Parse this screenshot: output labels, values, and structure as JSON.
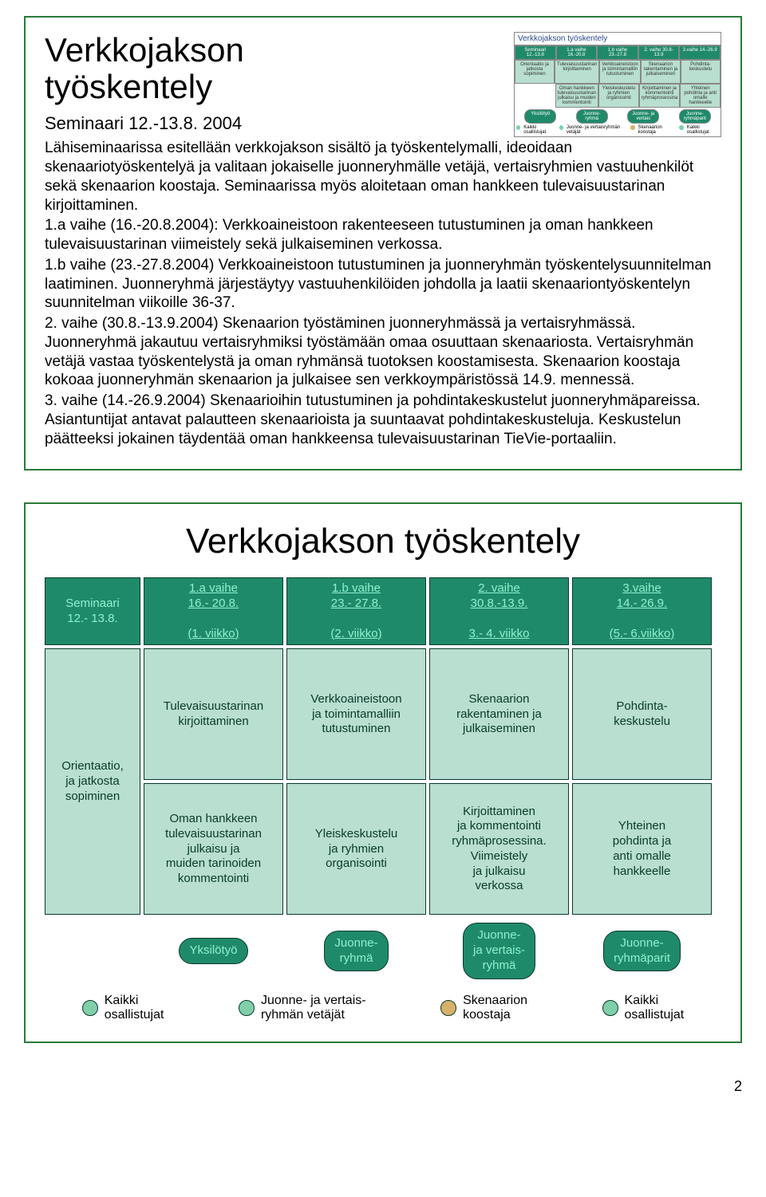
{
  "slide1": {
    "title": "Verkkojakson\ntyöskentely",
    "subtitle": "Seminaari 12.-13.8. 2004",
    "thumb_title": "Verkkojakson työskentely",
    "paragraphs": [
      "Lähiseminaarissa esitellään verkkojakson sisältö ja työskentelymalli, ideoidaan skenaariotyöskentelyä ja valitaan jokaiselle juonneryhmälle vetäjä, vertaisryhmien vastuuhenkilöt sekä skenaarion koostaja. Seminaarissa myös aloitetaan oman hankkeen tulevaisuustarinan kirjoittaminen.",
      "1.a vaihe (16.-20.8.2004): Verkkoaineistoon rakenteeseen tutustuminen ja oman hankkeen tulevaisuustarinan viimeistely sekä julkaiseminen verkossa.",
      "1.b vaihe (23.-27.8.2004) Verkkoaineistoon tutustuminen ja juonneryhmän työskentelysuunnitelman laatiminen. Juonneryhmä järjestäytyy vastuuhenkilöiden johdolla ja laatii skenaariontyöskentelyn suunnitelman viikoille 36-37.",
      "2. vaihe (30.8.-13.9.2004) Skenaarion työstäminen juonneryhmässä ja vertaisryhmässä. Juonneryhmä jakautuu vertaisryhmiksi työstämään omaa osuuttaan skenaariosta. Vertaisryhmän vetäjä vastaa työskentelystä ja oman ryhmänsä tuotoksen koostamisesta. Skenaarion koostaja kokoaa juonneryhmän skenaarion ja julkaisee sen verkkoympäristössä 14.9. mennessä.",
      "3. vaihe (14.-26.9.2004) Skenaarioihin tutustuminen ja pohdintakeskustelut juonneryhmäpareissa. Asiantuntijat antavat palautteen skenaarioista ja suuntaavat pohdintakeskusteluja. Keskustelun päätteeksi jokainen täydentää oman hankkeensa tulevaisuustarinan TieVie-portaaliin."
    ]
  },
  "slide2": {
    "title": "Verkkojakson työskentely",
    "header": [
      {
        "l1": "Seminaari",
        "l2": "12.- 13.8.",
        "style": "dark"
      },
      {
        "l1": "1.a vaihe",
        "l2": "16.- 20.8.",
        "l3": "(1. viikko)",
        "style": "dark",
        "underline": true
      },
      {
        "l1": "1.b vaihe",
        "l2": "23.- 27.8.",
        "l3": "(2. viikko)",
        "style": "dark",
        "underline": true
      },
      {
        "l1": "2. vaihe",
        "l2": "30.8.-13.9.",
        "l3": "3.- 4. viikko",
        "style": "dark",
        "underline": true
      },
      {
        "l1": "3.vaihe",
        "l2": "14.- 26.9.",
        "l3": "(5.- 6.viikko)",
        "style": "dark",
        "underline": true
      }
    ],
    "body": {
      "col0": {
        "text": "Orientaatio,\nja jatkosta\nsopiminen",
        "style": "light"
      },
      "col1": [
        {
          "text": "Tulevaisuustarinan\nkirjoittaminen",
          "style": "light"
        },
        {
          "text": "Oman hankkeen\ntulevaisuustarinan\njulkaisu ja\nmuiden tarinoiden\nkommentointi",
          "style": "light"
        }
      ],
      "col2": [
        {
          "text": "Verkkoaineistoon\nja toimintamalliin\ntutustuminen",
          "style": "light"
        },
        {
          "text": "Yleiskeskustelu\nja ryhmien\norganisointi",
          "style": "light"
        }
      ],
      "col3": [
        {
          "text": "Skenaarion\nrakentaminen ja\njulkaiseminen",
          "style": "light"
        },
        {
          "text": "Kirjoittaminen\nja kommentointi\nryhmäprosessina.\nViimeistely\nja julkaisu\nverkossa",
          "style": "light"
        }
      ],
      "col4": [
        {
          "text": "Pohdinta-\nkeskustelu",
          "style": "light"
        },
        {
          "text": "Yhteinen\npohdinta ja\nanti omalle\nhankkeelle",
          "style": "light"
        }
      ]
    },
    "roles": [
      {
        "label": "Yksilötyö"
      },
      {
        "label": "Juonne-\nryhmä"
      },
      {
        "label": "Juonne-\nja vertais-\nryhmä"
      },
      {
        "label": "Juonne-\nryhmäparit"
      }
    ],
    "legend": [
      {
        "color": "#7fd0a8",
        "label": "Kaikki\nosallistujat"
      },
      {
        "color": "#7fd0a8",
        "label": "Juonne- ja vertais-\nryhmän vetäjät"
      },
      {
        "color": "#d9b06a",
        "label": "Skenaarion\nkoostaja"
      },
      {
        "color": "#7fd0a8",
        "label": "Kaikki\nosallistujat"
      }
    ]
  },
  "page_number": "2"
}
